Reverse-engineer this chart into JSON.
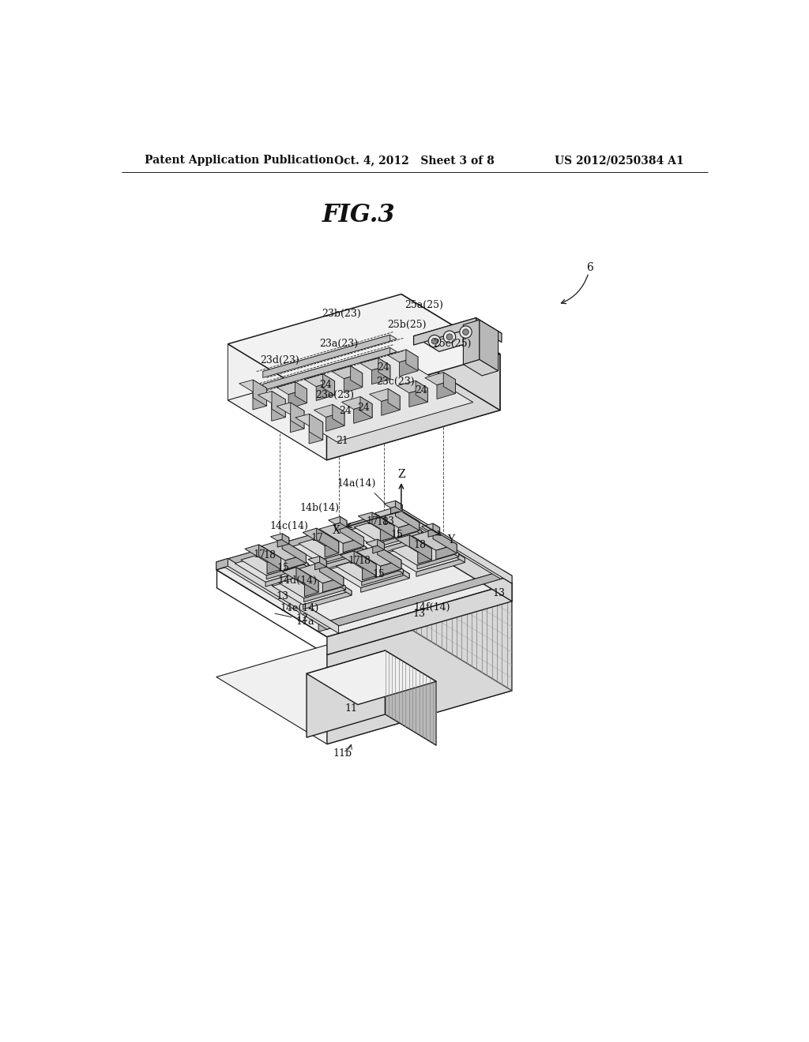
{
  "bg": "#ffffff",
  "header_left": "Patent Application Publication",
  "header_center": "Oct. 4, 2012   Sheet 3 of 8",
  "header_right": "US 2012/0250384 A1",
  "header_fontsize": 11,
  "fig_title": "FIG.3",
  "fig_title_fontsize": 22,
  "line_color": "#1a1a1a",
  "fill_light": "#f0f0f0",
  "fill_mid": "#d8d8d8",
  "fill_dark": "#b8b8b8",
  "fill_darker": "#989898"
}
